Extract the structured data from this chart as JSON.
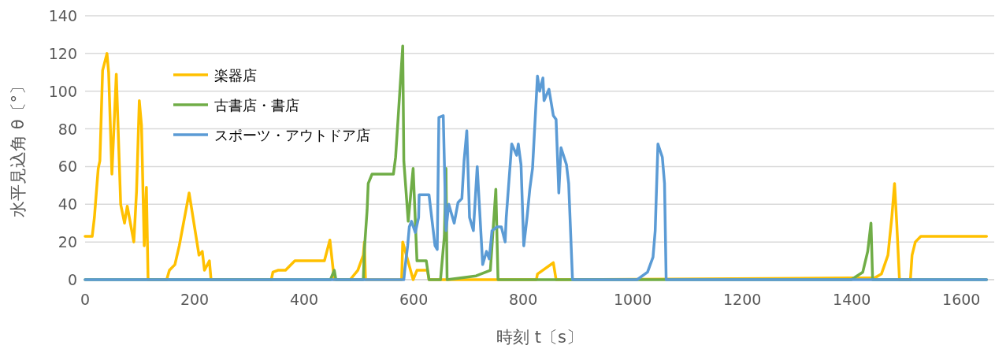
{
  "chart_data": {
    "type": "line",
    "xlabel": "時刻 t〔s〕",
    "ylabel": "水平見込角 θ〔°〕",
    "xlim": [
      0,
      1660
    ],
    "ylim": [
      0,
      140
    ],
    "xticks": [
      0,
      200,
      400,
      600,
      800,
      1000,
      1200,
      1400,
      1600
    ],
    "yticks": [
      0,
      20,
      40,
      60,
      80,
      100,
      120,
      140
    ],
    "grid": "y",
    "legend": "top left",
    "line_style": "solid",
    "series": [
      {
        "name": "楽器店",
        "color": "#ffc000",
        "x": [
          0,
          13,
          17,
          24,
          27,
          32,
          40,
          43,
          49,
          57,
          65,
          72,
          77,
          89,
          94,
          99,
          103,
          108,
          112,
          115,
          149,
          154,
          164,
          172,
          190,
          208,
          214,
          218,
          227,
          230,
          340,
          343,
          352,
          366,
          383,
          437,
          447,
          455,
          484,
          498,
          508,
          510,
          512,
          578,
          580,
          599,
          606,
          625,
          628,
          824,
          826,
          855,
          860,
          1442,
          1454,
          1466,
          1473,
          1478,
          1482,
          1487,
          1507,
          1510,
          1516,
          1526,
          1646
        ],
        "values": [
          23,
          23,
          33,
          59,
          63,
          111,
          120,
          110,
          56,
          109,
          40,
          30,
          39,
          20,
          47,
          95,
          82,
          18,
          49,
          0,
          0,
          5,
          8,
          18,
          46,
          13,
          15,
          5,
          10,
          0,
          0,
          4,
          5,
          5,
          10,
          10,
          21,
          0,
          0,
          5,
          13,
          20,
          0,
          0,
          20,
          0,
          5,
          5,
          0,
          0,
          3,
          9,
          0,
          1,
          3,
          13,
          33,
          51,
          30,
          0,
          0,
          13,
          20,
          23,
          23
        ]
      },
      {
        "name": "古書店・書店",
        "color": "#70ad47",
        "x": [
          0,
          448,
          455,
          458,
          508,
          510,
          515,
          517,
          524,
          563,
          567,
          580,
          582,
          590,
          599,
          606,
          623,
          628,
          649,
          656,
          659,
          661,
          714,
          740,
          750,
          754,
          1399,
          1420,
          1429,
          1435,
          1438,
          1646
        ],
        "values": [
          0,
          0,
          5,
          0,
          0,
          16,
          37,
          51,
          56,
          56,
          65,
          124,
          63,
          31,
          59,
          10,
          10,
          0,
          0,
          23,
          59,
          0,
          2,
          5,
          48,
          0,
          0,
          4,
          15,
          30,
          0,
          0
        ]
      },
      {
        "name": "スポーツ・アウトドア店",
        "color": "#5b9bd5",
        "x": [
          0,
          582,
          584,
          589,
          592,
          596,
          603,
          609,
          610,
          628,
          639,
          643,
          646,
          654,
          659,
          664,
          674,
          681,
          688,
          692,
          697,
          702,
          709,
          716,
          726,
          733,
          738,
          743,
          752,
          760,
          767,
          769,
          779,
          788,
          791,
          796,
          801,
          807,
          812,
          817,
          826,
          830,
          836,
          838,
          847,
          855,
          860,
          865,
          869,
          879,
          883,
          890,
          1008,
          1027,
          1037,
          1041,
          1046,
          1054,
          1058,
          1061,
          1646
        ],
        "values": [
          0,
          0,
          6,
          18,
          28,
          31,
          25,
          33,
          45,
          45,
          18,
          16,
          86,
          87,
          26,
          40,
          30,
          41,
          43,
          63,
          79,
          33,
          26,
          60,
          8,
          15,
          11,
          26,
          28,
          28,
          20,
          33,
          72,
          66,
          72,
          61,
          18,
          33,
          48,
          59,
          108,
          100,
          107,
          95,
          101,
          87,
          85,
          46,
          70,
          61,
          51,
          0,
          0,
          4,
          12,
          26,
          72,
          65,
          51,
          0,
          0
        ]
      }
    ]
  }
}
